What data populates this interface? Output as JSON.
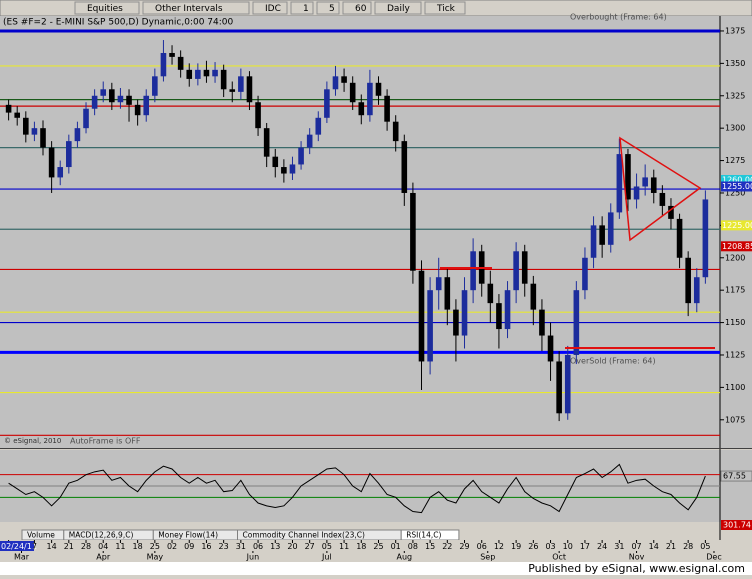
{
  "toolbar": {
    "buttons": [
      "Equities",
      "Other Intervals",
      "IDC",
      "1",
      "5",
      "60",
      "Daily",
      "Tick"
    ]
  },
  "chart_data": [
    {
      "type": "candlestick",
      "title": "(ES #F=2 - E-MINI S&P 500,D) Dynamic,0:00 74:00",
      "up_color": "#1c2c9c",
      "down_color": "#000000",
      "open": [
        1318,
        1312,
        1308,
        1295,
        1300,
        1285,
        1262,
        1270,
        1290,
        1300,
        1315,
        1325,
        1330,
        1320,
        1325,
        1318,
        1310,
        1325,
        1340,
        1358,
        1355,
        1345,
        1338,
        1345,
        1340,
        1345,
        1330,
        1328,
        1340,
        1320,
        1300,
        1278,
        1270,
        1265,
        1272,
        1285,
        1295,
        1308,
        1330,
        1340,
        1335,
        1320,
        1310,
        1335,
        1325,
        1305,
        1290,
        1250,
        1190,
        1120,
        1175,
        1185,
        1160,
        1140,
        1175,
        1205,
        1180,
        1165,
        1145,
        1175,
        1205,
        1180,
        1160,
        1140,
        1120,
        1080,
        1125,
        1175,
        1200,
        1225,
        1210,
        1235,
        1280,
        1245,
        1255,
        1262,
        1250,
        1240,
        1230,
        1200,
        1165,
        1185
      ],
      "high": [
        1322,
        1317,
        1313,
        1305,
        1306,
        1290,
        1275,
        1295,
        1305,
        1320,
        1330,
        1336,
        1335,
        1331,
        1330,
        1322,
        1330,
        1346,
        1368,
        1364,
        1360,
        1350,
        1350,
        1352,
        1351,
        1349,
        1336,
        1346,
        1344,
        1325,
        1304,
        1284,
        1276,
        1278,
        1290,
        1300,
        1313,
        1336,
        1348,
        1346,
        1340,
        1326,
        1345,
        1340,
        1330,
        1310,
        1295,
        1258,
        1198,
        1185,
        1200,
        1192,
        1168,
        1185,
        1215,
        1210,
        1190,
        1172,
        1182,
        1212,
        1210,
        1186,
        1168,
        1150,
        1128,
        1132,
        1182,
        1208,
        1232,
        1232,
        1242,
        1292,
        1284,
        1265,
        1272,
        1268,
        1256,
        1246,
        1234,
        1205,
        1192,
        1252
      ],
      "low": [
        1306,
        1302,
        1289,
        1290,
        1279,
        1250,
        1256,
        1265,
        1285,
        1296,
        1310,
        1320,
        1314,
        1315,
        1305,
        1302,
        1305,
        1320,
        1336,
        1349,
        1339,
        1332,
        1333,
        1335,
        1335,
        1324,
        1320,
        1322,
        1314,
        1294,
        1270,
        1262,
        1258,
        1260,
        1268,
        1280,
        1290,
        1304,
        1325,
        1328,
        1314,
        1303,
        1305,
        1318,
        1298,
        1282,
        1240,
        1180,
        1098,
        1110,
        1160,
        1148,
        1120,
        1130,
        1165,
        1170,
        1150,
        1130,
        1138,
        1165,
        1170,
        1148,
        1128,
        1105,
        1074,
        1075,
        1118,
        1168,
        1192,
        1200,
        1204,
        1230,
        1236,
        1238,
        1248,
        1242,
        1232,
        1222,
        1192,
        1155,
        1158,
        1180
      ],
      "close": [
        1312,
        1308,
        1295,
        1300,
        1285,
        1262,
        1270,
        1290,
        1300,
        1315,
        1325,
        1330,
        1320,
        1325,
        1318,
        1310,
        1325,
        1340,
        1358,
        1355,
        1345,
        1338,
        1345,
        1340,
        1345,
        1330,
        1328,
        1340,
        1320,
        1300,
        1278,
        1270,
        1265,
        1272,
        1285,
        1295,
        1308,
        1330,
        1340,
        1335,
        1320,
        1310,
        1335,
        1325,
        1305,
        1290,
        1250,
        1190,
        1120,
        1175,
        1185,
        1160,
        1140,
        1175,
        1205,
        1180,
        1165,
        1145,
        1175,
        1205,
        1180,
        1160,
        1140,
        1120,
        1080,
        1125,
        1175,
        1200,
        1225,
        1210,
        1235,
        1280,
        1245,
        1255,
        1262,
        1250,
        1240,
        1230,
        1200,
        1165,
        1185,
        1245
      ],
      "xlim": [
        -1,
        82.7
      ],
      "xticks": [
        {
          "value": 0,
          "label": "02/24/11"
        },
        {
          "value": 3,
          "label": "7"
        },
        {
          "value": 5,
          "label": "14"
        },
        {
          "value": 7,
          "label": "21"
        },
        {
          "value": 9,
          "label": "28"
        },
        {
          "value": 11,
          "label": "04"
        },
        {
          "value": 13,
          "label": "11"
        },
        {
          "value": 15,
          "label": "18"
        },
        {
          "value": 17,
          "label": "25"
        },
        {
          "value": 19,
          "label": "02"
        },
        {
          "value": 21,
          "label": "09"
        },
        {
          "value": 23,
          "label": "16"
        },
        {
          "value": 25,
          "label": "23"
        },
        {
          "value": 27,
          "label": "31"
        },
        {
          "value": 29,
          "label": "06"
        },
        {
          "value": 31,
          "label": "13"
        },
        {
          "value": 33,
          "label": "20"
        },
        {
          "value": 35,
          "label": "27"
        },
        {
          "value": 37,
          "label": "05"
        },
        {
          "value": 39,
          "label": "11"
        },
        {
          "value": 41,
          "label": "18"
        },
        {
          "value": 43,
          "label": "25"
        },
        {
          "value": 45,
          "label": "01"
        },
        {
          "value": 47,
          "label": "08"
        },
        {
          "value": 49,
          "label": "15"
        },
        {
          "value": 51,
          "label": "22"
        },
        {
          "value": 53,
          "label": "29"
        },
        {
          "value": 55,
          "label": "06"
        },
        {
          "value": 57,
          "label": "12"
        },
        {
          "value": 59,
          "label": "19"
        },
        {
          "value": 61,
          "label": "26"
        },
        {
          "value": 63,
          "label": "03"
        },
        {
          "value": 65,
          "label": "10"
        },
        {
          "value": 67,
          "label": "17"
        },
        {
          "value": 69,
          "label": "24"
        },
        {
          "value": 71,
          "label": "31"
        },
        {
          "value": 73,
          "label": "07"
        },
        {
          "value": 75,
          "label": "14"
        },
        {
          "value": 77,
          "label": "21"
        },
        {
          "value": 79,
          "label": "28"
        },
        {
          "value": 81,
          "label": "05"
        }
      ],
      "months": [
        {
          "value": 1.5,
          "label": "Mar"
        },
        {
          "value": 11,
          "label": "Apr"
        },
        {
          "value": 17,
          "label": "May"
        },
        {
          "value": 28.4,
          "label": "Jun"
        },
        {
          "value": 37,
          "label": "Jul"
        },
        {
          "value": 46,
          "label": "Aug"
        },
        {
          "value": 55.7,
          "label": "Sep"
        },
        {
          "value": 64,
          "label": "Oct"
        },
        {
          "value": 73,
          "label": "Nov"
        },
        {
          "value": 82,
          "label": "Dec"
        }
      ],
      "ylim": [
        1054,
        1385
      ],
      "yticks": [
        1075,
        1100,
        1125,
        1150,
        1175,
        1200,
        1225,
        1250,
        1275,
        1300,
        1325,
        1350,
        1375
      ],
      "levels": [
        {
          "value": 1375,
          "color": "#0000cc",
          "thick": true
        },
        {
          "value": 1348,
          "color": "#e8e830",
          "thick": false
        },
        {
          "value": 1322,
          "color": "#1a5a1a",
          "thick": false
        },
        {
          "value": 1317,
          "color": "#cc0000",
          "thick": false
        },
        {
          "value": 1285,
          "color": "#3a6a6a",
          "thick": false
        },
        {
          "value": 1253,
          "color": "#0000cc",
          "thick": false
        },
        {
          "value": 1222,
          "color": "#3a6a6a",
          "thick": false
        },
        {
          "value": 1191,
          "color": "#cc0000",
          "thick": false
        },
        {
          "value": 1158,
          "color": "#e8e830",
          "thick": false
        },
        {
          "value": 1150,
          "color": "#0000cc",
          "thick": false
        },
        {
          "value": 1127,
          "color": "#0000ff",
          "thick": true
        },
        {
          "value": 1096,
          "color": "#e8e830",
          "thick": false
        },
        {
          "value": 1063,
          "color": "#cc0000",
          "thick": false
        }
      ],
      "price_markers": [
        {
          "value": 1260,
          "label": "1260.00",
          "color": "#20c8d8",
          "text_color": "#ffffff"
        },
        {
          "value": 1255,
          "label": "1255.00",
          "color": "#2030c0",
          "text_color": "#ffffff"
        },
        {
          "value": 1225,
          "label": "1225.00",
          "color": "#e8e830",
          "text_color": "#ffffff"
        },
        {
          "value": 1208.85,
          "label": "1208.85",
          "color": "#cc0000",
          "text_color": "#ffffff"
        }
      ],
      "annotations": {
        "overbought": "Overbought (Frame: 64)",
        "oversold": "OverSold (Frame: 64)",
        "autoframe": "AutoFrame is OFF",
        "copyright": "© eSignal, 2010"
      }
    },
    {
      "type": "line",
      "color": "#000000",
      "values": [
        55,
        45,
        35,
        40,
        30,
        15,
        30,
        55,
        60,
        70,
        75,
        78,
        60,
        65,
        50,
        40,
        60,
        75,
        85,
        80,
        65,
        55,
        65,
        55,
        60,
        40,
        42,
        60,
        35,
        20,
        15,
        12,
        15,
        30,
        50,
        60,
        70,
        80,
        82,
        70,
        50,
        40,
        72,
        55,
        35,
        30,
        15,
        5,
        3,
        30,
        40,
        25,
        20,
        45,
        60,
        40,
        30,
        20,
        45,
        65,
        40,
        28,
        20,
        15,
        5,
        35,
        65,
        72,
        80,
        65,
        75,
        88,
        55,
        60,
        62,
        50,
        40,
        35,
        20,
        8,
        30,
        67.55
      ],
      "ylim": [
        -10,
        110
      ],
      "levels": [
        {
          "value": 70,
          "color": "#cc0000"
        },
        {
          "value": 50,
          "color": "#808080"
        },
        {
          "value": 30,
          "color": "#008000"
        }
      ],
      "current": 67.55,
      "other_value": 301.74
    }
  ],
  "tabs": [
    "Volume",
    "MACD(12,26,9,C)",
    "Money Flow(14)",
    "Commodity Channel Index(23,C)",
    "RSI(14,C)"
  ],
  "footer": "Published by eSignal, www.esignal.com"
}
